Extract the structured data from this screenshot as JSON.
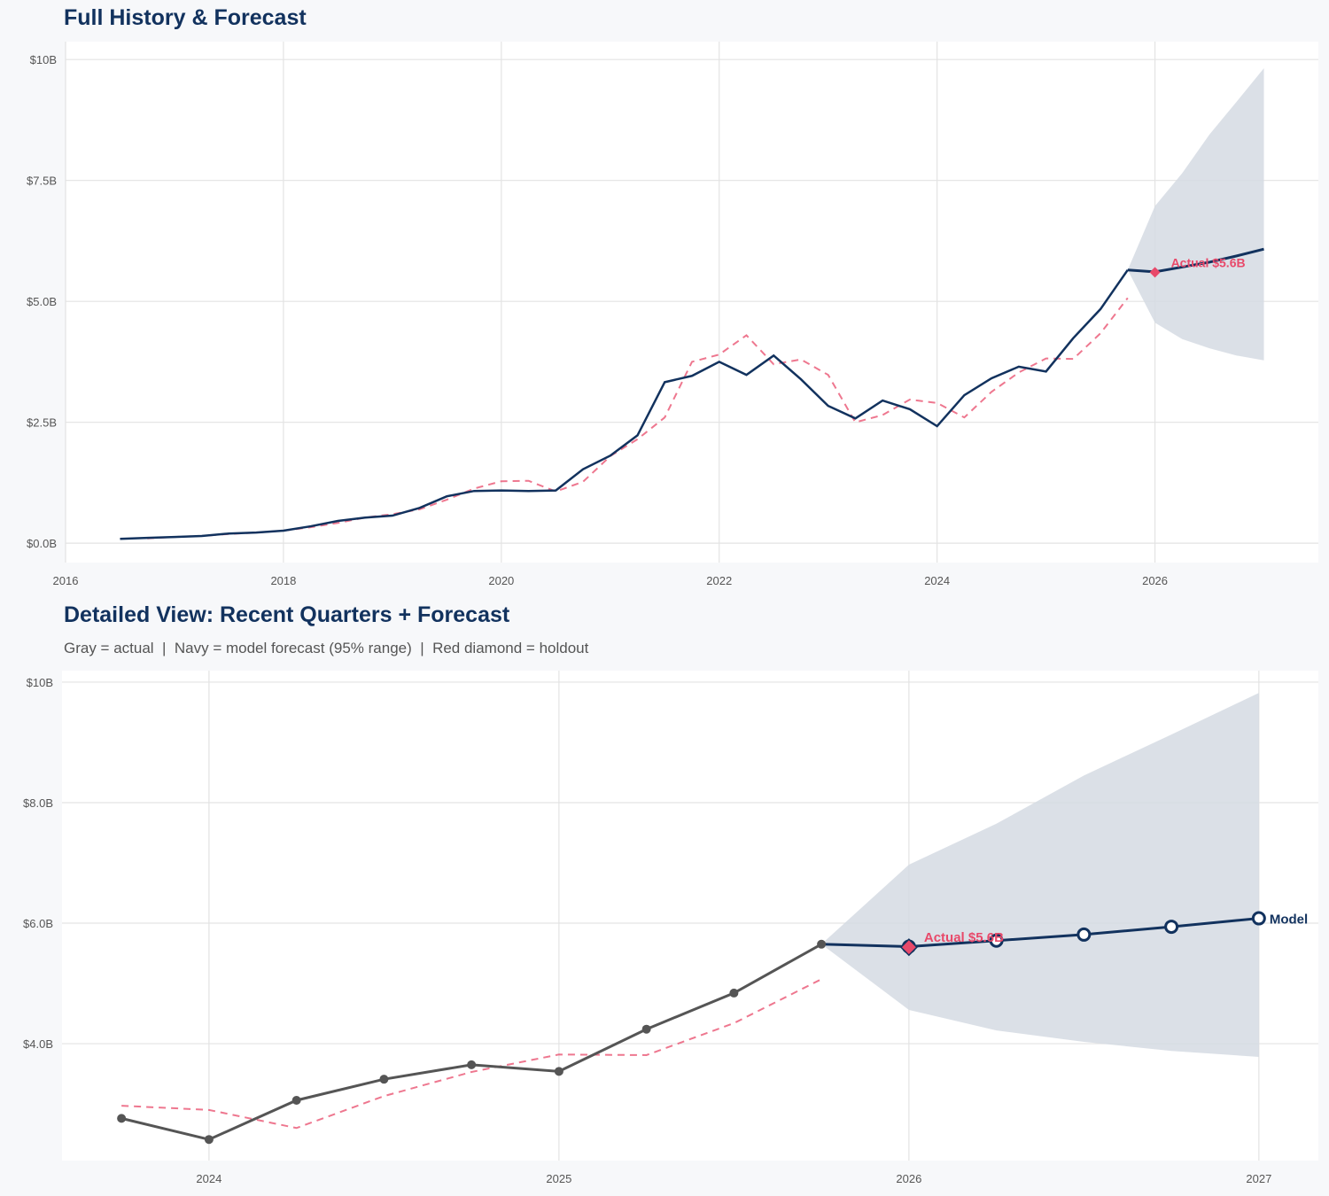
{
  "colors": {
    "navy": "#12325e",
    "red": "#e8496a",
    "gray": "#555555",
    "band": "#d5dbe3",
    "grid": "#e3e3e3"
  },
  "chart_data": [
    {
      "type": "line",
      "title": "Full History & Forecast",
      "xlim": [
        2016,
        2027.5
      ],
      "ylim": [
        -0.4,
        10.37
      ],
      "xticks": [
        2016,
        2018,
        2020,
        2022,
        2024,
        2026
      ],
      "xtick_labels": [
        "2016",
        "2018",
        "2020",
        "2022",
        "2024",
        "2026"
      ],
      "yticks": [
        0,
        2.5,
        5,
        7.5,
        10
      ],
      "ytick_labels": [
        "$0.0B",
        "$2.5B",
        "$5.0B",
        "$7.5B",
        "$10B"
      ],
      "grid": true,
      "actual": {
        "x": [
          2016.5,
          2016.75,
          2017,
          2017.25,
          2017.5,
          2017.75,
          2018,
          2018.25,
          2018.5,
          2018.75,
          2019,
          2019.25,
          2019.5,
          2019.75,
          2020,
          2020.25,
          2020.5,
          2020.75,
          2021,
          2021.25,
          2021.5,
          2021.75,
          2022,
          2022.25,
          2022.5,
          2022.75,
          2023,
          2023.25,
          2023.5,
          2023.75,
          2024,
          2024.25,
          2024.5,
          2024.75,
          2025,
          2025.25,
          2025.5,
          2025.75
        ],
        "y": [
          0.09,
          0.11,
          0.13,
          0.15,
          0.2,
          0.22,
          0.26,
          0.35,
          0.46,
          0.53,
          0.57,
          0.73,
          0.97,
          1.08,
          1.09,
          1.08,
          1.09,
          1.53,
          1.81,
          2.23,
          3.33,
          3.46,
          3.75,
          3.48,
          3.88,
          3.39,
          2.84,
          2.58,
          2.95,
          2.77,
          2.42,
          3.06,
          3.41,
          3.65,
          3.55,
          4.24,
          4.84,
          5.65
        ]
      },
      "fitted": {
        "x": [
          2016.75,
          2017,
          2017.25,
          2017.5,
          2017.75,
          2018,
          2018.25,
          2018.5,
          2018.75,
          2019,
          2019.25,
          2019.5,
          2019.75,
          2020,
          2020.25,
          2020.5,
          2020.75,
          2021,
          2021.25,
          2021.5,
          2021.75,
          2022,
          2022.25,
          2022.5,
          2022.75,
          2023,
          2023.25,
          2023.5,
          2023.75,
          2024,
          2024.25,
          2024.5,
          2024.75,
          2025,
          2025.25,
          2025.5,
          2025.75
        ],
        "y": [
          0.1,
          0.13,
          0.15,
          0.19,
          0.22,
          0.26,
          0.33,
          0.42,
          0.53,
          0.6,
          0.7,
          0.9,
          1.13,
          1.28,
          1.29,
          1.07,
          1.27,
          1.8,
          2.15,
          2.6,
          3.75,
          3.9,
          4.3,
          3.7,
          3.8,
          3.48,
          2.5,
          2.65,
          2.97,
          2.9,
          2.6,
          3.13,
          3.53,
          3.82,
          3.81,
          4.34,
          5.07
        ]
      },
      "forecast": {
        "x": [
          2025.75,
          2026,
          2026.25,
          2026.5,
          2026.75,
          2027
        ],
        "y": [
          5.65,
          5.61,
          5.71,
          5.81,
          5.94,
          6.08
        ],
        "lower": [
          5.65,
          4.56,
          4.22,
          4.03,
          3.88,
          3.78
        ],
        "upper": [
          5.65,
          6.97,
          7.65,
          8.45,
          9.13,
          9.82
        ]
      },
      "holdout": {
        "x": 2026,
        "y": 5.6,
        "label": "Actual $5.6B"
      }
    },
    {
      "type": "line",
      "title": "Detailed View: Recent Quarters + Forecast",
      "subtitle": "Gray = actual  |  Navy = model forecast (95% range)  |  Red diamond = holdout",
      "xlim": [
        2023.58,
        2027.17
      ],
      "ylim": [
        2.06,
        10.19
      ],
      "xticks": [
        2024,
        2025,
        2026,
        2027
      ],
      "xtick_labels": [
        "2024",
        "2025",
        "2026",
        "2027"
      ],
      "yticks": [
        4,
        6,
        8,
        10
      ],
      "ytick_labels": [
        "$4.0B",
        "$6.0B",
        "$8.0B",
        "$10B"
      ],
      "grid": true,
      "actual": {
        "x": [
          2023.75,
          2024,
          2024.25,
          2024.5,
          2024.75,
          2025,
          2025.25,
          2025.5,
          2025.75
        ],
        "y": [
          2.76,
          2.41,
          3.06,
          3.41,
          3.65,
          3.54,
          4.24,
          4.84,
          5.65
        ]
      },
      "fitted": {
        "x": [
          2023.75,
          2024,
          2024.25,
          2024.5,
          2024.75,
          2025,
          2025.25,
          2025.5,
          2025.75
        ],
        "y": [
          2.97,
          2.9,
          2.6,
          3.13,
          3.53,
          3.82,
          3.81,
          4.34,
          5.07
        ]
      },
      "forecast": {
        "x": [
          2025.75,
          2026,
          2026.25,
          2026.5,
          2026.75,
          2027
        ],
        "y": [
          5.65,
          5.61,
          5.71,
          5.81,
          5.94,
          6.08
        ],
        "lower": [
          5.65,
          4.56,
          4.22,
          4.03,
          3.88,
          3.78
        ],
        "upper": [
          5.65,
          6.97,
          7.65,
          8.45,
          9.13,
          9.82
        ],
        "label": "Model"
      },
      "holdout": {
        "x": 2026,
        "y": 5.6,
        "label": "Actual $5.6B"
      }
    }
  ]
}
